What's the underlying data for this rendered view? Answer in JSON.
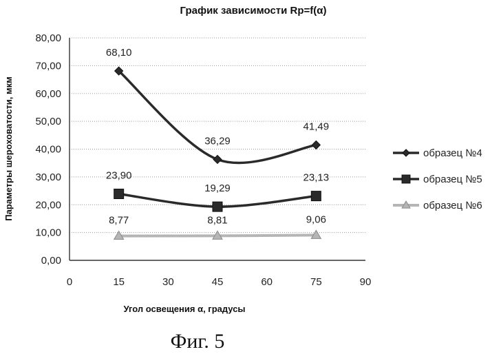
{
  "chart_data": {
    "type": "line",
    "title": "График зависимости Rp=f(α)",
    "xlabel": "Угол освещения α, градусы",
    "ylabel": "Параметры шероховатости, мкм",
    "x_ticks": [
      "0",
      "15",
      "30",
      "45",
      "60",
      "75",
      "90"
    ],
    "y_ticks": [
      "0,00",
      "10,00",
      "20,00",
      "30,00",
      "40,00",
      "50,00",
      "60,00",
      "70,00",
      "80,00"
    ],
    "xlim": [
      0,
      90
    ],
    "ylim": [
      0,
      80
    ],
    "grid": true,
    "legend_position": "right",
    "x": [
      15,
      45,
      75
    ],
    "series": [
      {
        "name": "образец №4",
        "values": [
          68.1,
          36.29,
          41.49
        ],
        "labels": [
          "68,10",
          "36,29",
          "41,49"
        ],
        "marker": "diamond",
        "color": "#2a2a2a",
        "smooth": true
      },
      {
        "name": "образец №5",
        "values": [
          23.9,
          19.29,
          23.13
        ],
        "labels": [
          "23,90",
          "19,29",
          "23,13"
        ],
        "marker": "square",
        "color": "#2a2a2a",
        "smooth": true
      },
      {
        "name": "образец №6",
        "values": [
          8.77,
          8.81,
          9.06
        ],
        "labels": [
          "8,77",
          "8,81",
          "9,06"
        ],
        "marker": "triangle",
        "color": "#b5b5b5",
        "smooth": true
      }
    ]
  },
  "caption": "Фиг. 5"
}
